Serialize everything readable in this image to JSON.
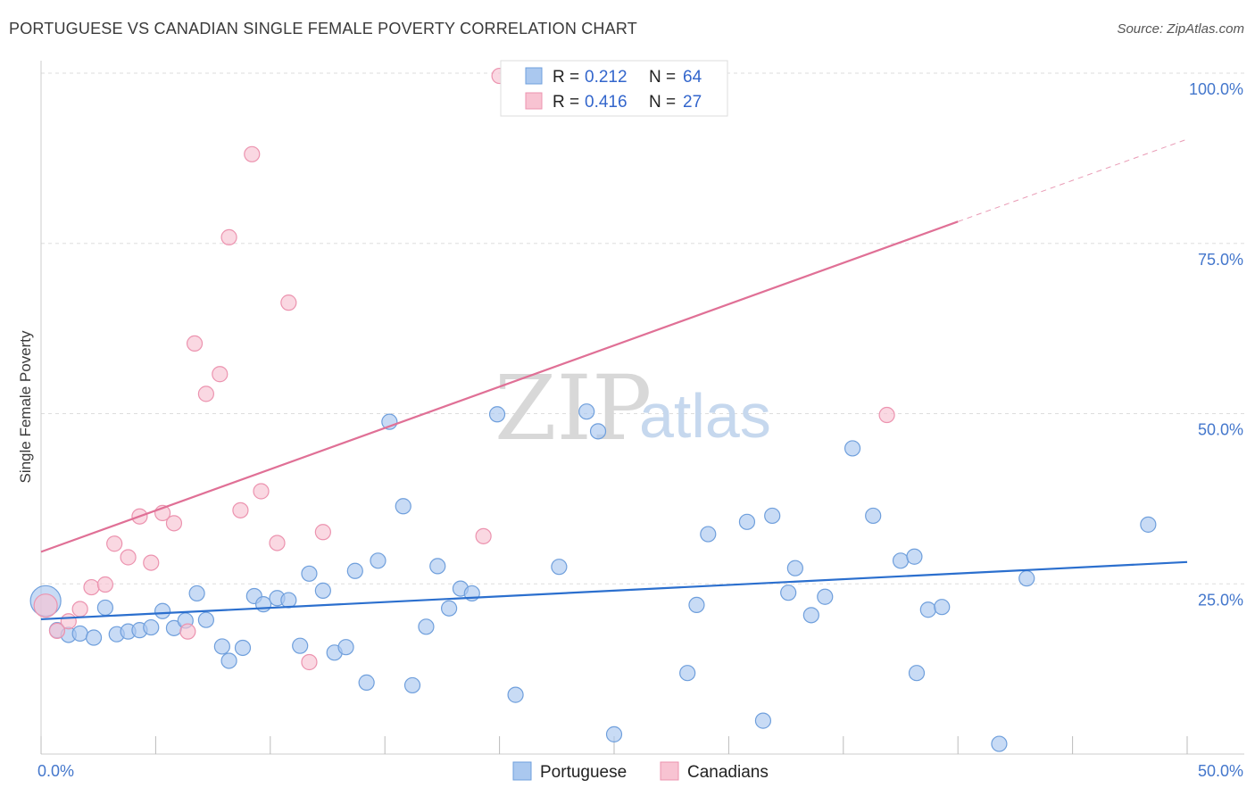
{
  "header": {
    "title": "PORTUGUESE VS CANADIAN SINGLE FEMALE POVERTY CORRELATION CHART",
    "source": "Source: ZipAtlas.com"
  },
  "watermark": {
    "zip": "ZIP",
    "atlas": "atlas"
  },
  "colors": {
    "blue_fill": "#aac8ef",
    "blue_stroke": "#6f9fdc",
    "blue_line": "#2b6fce",
    "pink_fill": "#f8c3d2",
    "pink_stroke": "#ec93af",
    "pink_line": "#e07096",
    "grid": "#dddddd",
    "axis_label": "#4477cc"
  },
  "legend": {
    "rows": [
      {
        "r_label": "R = ",
        "r_value": "0.212",
        "n_label": "N = ",
        "n_value": "64"
      },
      {
        "r_label": "R = ",
        "r_value": "0.416",
        "n_label": "N = ",
        "n_value": "27"
      }
    ]
  },
  "bottom_legend": [
    "Portuguese",
    "Canadians"
  ],
  "chart_data": {
    "type": "scatter",
    "title": "PORTUGUESE VS CANADIAN SINGLE FEMALE POVERTY CORRELATION CHART",
    "xlabel": "",
    "ylabel": "Single Female Poverty",
    "xlim": [
      0,
      50
    ],
    "ylim": [
      0,
      100
    ],
    "x_tick_labels": [
      "0.0%",
      "50.0%"
    ],
    "y_ticks": [
      25,
      50,
      75,
      100
    ],
    "y_tick_labels": [
      "25.0%",
      "50.0%",
      "75.0%",
      "100.0%"
    ],
    "series": [
      {
        "name": "Portuguese",
        "R": 0.212,
        "N": 64,
        "trend": {
          "x0": 0,
          "y0": 19.8,
          "x1": 50,
          "y1": 28.2
        },
        "points": [
          [
            0.2,
            22.5
          ],
          [
            0.7,
            18.2
          ],
          [
            1.2,
            17.5
          ],
          [
            1.7,
            17.7
          ],
          [
            2.3,
            17.1
          ],
          [
            2.8,
            21.5
          ],
          [
            3.3,
            17.6
          ],
          [
            3.8,
            18.0
          ],
          [
            4.3,
            18.2
          ],
          [
            4.8,
            18.6
          ],
          [
            5.3,
            21.0
          ],
          [
            5.8,
            18.5
          ],
          [
            6.3,
            19.6
          ],
          [
            6.8,
            23.6
          ],
          [
            7.2,
            19.7
          ],
          [
            7.9,
            15.8
          ],
          [
            8.2,
            13.7
          ],
          [
            8.8,
            15.6
          ],
          [
            9.3,
            23.2
          ],
          [
            9.7,
            22.0
          ],
          [
            10.3,
            22.9
          ],
          [
            10.8,
            22.6
          ],
          [
            11.3,
            15.9
          ],
          [
            11.7,
            26.5
          ],
          [
            12.3,
            24.0
          ],
          [
            12.8,
            14.9
          ],
          [
            13.3,
            15.7
          ],
          [
            13.7,
            26.9
          ],
          [
            14.2,
            10.5
          ],
          [
            14.7,
            28.4
          ],
          [
            15.2,
            48.8
          ],
          [
            15.8,
            36.4
          ],
          [
            16.2,
            10.1
          ],
          [
            16.8,
            18.7
          ],
          [
            17.3,
            27.6
          ],
          [
            17.8,
            21.4
          ],
          [
            18.3,
            24.3
          ],
          [
            18.8,
            23.6
          ],
          [
            19.9,
            49.9
          ],
          [
            20.7,
            8.7
          ],
          [
            22.6,
            27.5
          ],
          [
            23.8,
            50.3
          ],
          [
            24.3,
            47.4
          ],
          [
            25.0,
            2.9
          ],
          [
            28.2,
            11.9
          ],
          [
            28.6,
            21.9
          ],
          [
            29.1,
            32.3
          ],
          [
            30.8,
            34.1
          ],
          [
            31.5,
            4.9
          ],
          [
            31.9,
            35.0
          ],
          [
            32.6,
            23.7
          ],
          [
            32.9,
            27.3
          ],
          [
            33.6,
            20.4
          ],
          [
            34.2,
            23.1
          ],
          [
            35.4,
            44.9
          ],
          [
            36.3,
            35.0
          ],
          [
            37.5,
            28.4
          ],
          [
            38.1,
            29.0
          ],
          [
            38.2,
            11.9
          ],
          [
            38.7,
            21.2
          ],
          [
            39.3,
            21.6
          ],
          [
            41.8,
            1.5
          ],
          [
            43.0,
            25.8
          ],
          [
            48.3,
            33.7
          ]
        ]
      },
      {
        "name": "Canadians",
        "R": 0.416,
        "N": 27,
        "trend": {
          "x0": 0,
          "y0": 29.7,
          "x1": 40,
          "y1": 78.2,
          "dash_to_x": 50,
          "dash_to_y": 90.3
        },
        "points": [
          [
            0.2,
            21.8
          ],
          [
            0.7,
            18.1
          ],
          [
            1.2,
            19.5
          ],
          [
            1.7,
            21.3
          ],
          [
            2.2,
            24.5
          ],
          [
            2.8,
            24.9
          ],
          [
            3.2,
            30.9
          ],
          [
            3.8,
            28.9
          ],
          [
            4.3,
            34.9
          ],
          [
            4.8,
            28.1
          ],
          [
            5.3,
            35.4
          ],
          [
            5.8,
            33.9
          ],
          [
            6.4,
            18.0
          ],
          [
            6.7,
            60.3
          ],
          [
            7.2,
            52.9
          ],
          [
            7.8,
            55.8
          ],
          [
            8.2,
            75.9
          ],
          [
            8.7,
            35.8
          ],
          [
            9.2,
            88.1
          ],
          [
            9.6,
            38.6
          ],
          [
            10.3,
            31.0
          ],
          [
            10.8,
            66.3
          ],
          [
            11.7,
            13.5
          ],
          [
            12.3,
            32.6
          ],
          [
            19.3,
            32.0
          ],
          [
            20.0,
            99.6
          ],
          [
            36.9,
            49.8
          ]
        ]
      }
    ]
  }
}
